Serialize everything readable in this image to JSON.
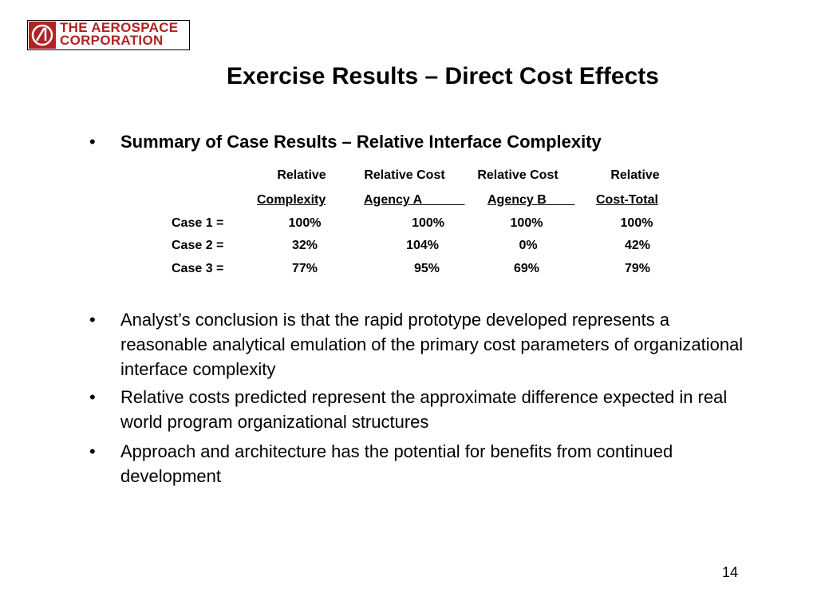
{
  "logo": {
    "line1": "THE AEROSPACE",
    "line2": "CORPORATION"
  },
  "title": "Exercise Results – Direct Cost Effects",
  "bullet_char": "•",
  "summary_heading": "Summary of Case Results – Relative Interface Complexity",
  "table": {
    "headers": [
      {
        "line1": "Relative",
        "line2": "Complexity"
      },
      {
        "line1": "Relative Cost",
        "line2": "Agency A"
      },
      {
        "line1": "Relative Cost",
        "line2": "Agency B"
      },
      {
        "line1": "Relative",
        "line2": "Cost-Total"
      }
    ],
    "rows": [
      {
        "label": "Case 1 =",
        "values": [
          "100%",
          "100%",
          "100%",
          "100%"
        ]
      },
      {
        "label": "Case 2 =",
        "values": [
          "32%",
          "104%",
          "0%",
          "42%"
        ]
      },
      {
        "label": "Case 3 =",
        "values": [
          "77%",
          "95%",
          "69%",
          "79%"
        ]
      }
    ]
  },
  "bullets": [
    "Analyst’s conclusion is that the rapid prototype developed represents a reasonable analytical emulation of the primary cost parameters of organizational interface complexity",
    "Relative costs predicted represent the approximate difference expected in real world program organizational structures",
    "Approach and architecture has the potential for benefits from continued development"
  ],
  "page_number": "14"
}
